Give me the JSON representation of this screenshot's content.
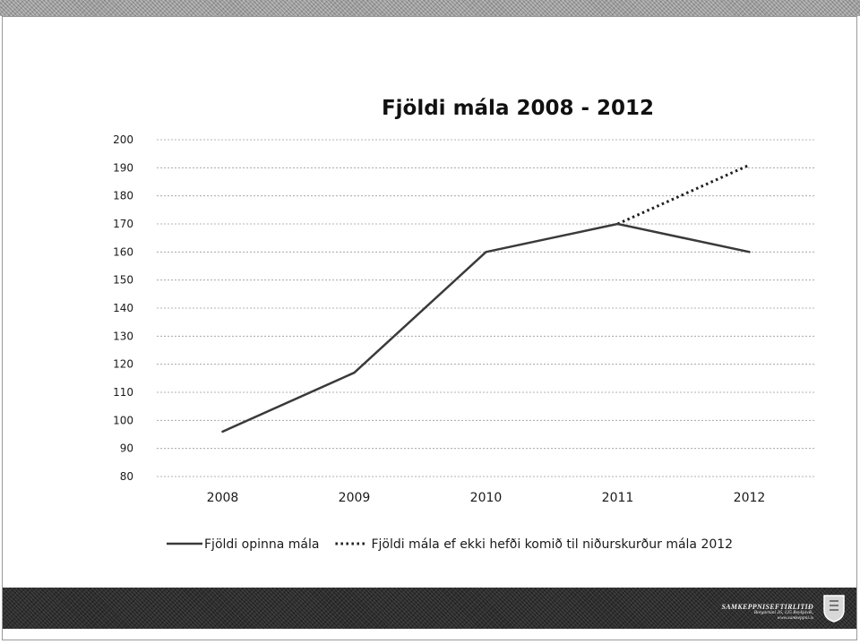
{
  "colors": {
    "series_solid": "#3a3a3a",
    "series_dotted": "#1f1f1f",
    "grid": "#9a9a9a",
    "banner": "#2e2e2e"
  },
  "footer": {
    "logo_name": "SAMKEPPNISEFTIRLITIÐ",
    "logo_line1": "Borgartúni 26, 125 Reykjavík,",
    "logo_line2": "www.samkeppni.is",
    "logo_icon": "crest-icon"
  },
  "chart_data": {
    "type": "line",
    "title": "Fjöldi mála 2008 - 2012",
    "xlabel": "",
    "ylabel": "",
    "categories": [
      "2008",
      "2009",
      "2010",
      "2011",
      "2012"
    ],
    "ylim": [
      80,
      200
    ],
    "yticks": [
      80,
      90,
      100,
      110,
      120,
      130,
      140,
      150,
      160,
      170,
      180,
      190,
      200
    ],
    "grid": true,
    "legend_position": "bottom",
    "series": [
      {
        "name": "Fjöldi opinna mála",
        "style": "solid",
        "values": [
          96,
          117,
          160,
          170,
          160
        ]
      },
      {
        "name": "Fjöldi mála ef ekki hefði komið til niðurskurður mála 2012",
        "style": "dotted",
        "values": [
          null,
          null,
          null,
          170,
          191
        ]
      }
    ]
  }
}
